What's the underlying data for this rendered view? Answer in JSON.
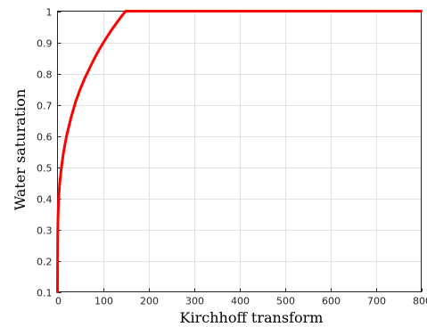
{
  "chart_data": {
    "type": "line",
    "title": "",
    "xlabel": "Kirchhoff transform",
    "ylabel": "Water saturation",
    "xlim": [
      0,
      800
    ],
    "ylim": [
      0.1,
      1
    ],
    "xticks": [
      0,
      100,
      200,
      300,
      400,
      500,
      600,
      700,
      800
    ],
    "yticks": [
      0.1,
      0.2,
      0.3,
      0.4,
      0.5,
      0.6,
      0.7,
      0.8,
      0.9,
      1
    ],
    "xtick_labels": [
      "0",
      "100",
      "200",
      "300",
      "400",
      "500",
      "600",
      "700",
      "800"
    ],
    "ytick_labels": [
      "0.1",
      "0.2",
      "0.3",
      "0.4",
      "0.5",
      "0.6",
      "0.7",
      "0.8",
      "0.9",
      "1"
    ],
    "grid": true,
    "colors": {
      "series": "#ff0000"
    },
    "series": [
      {
        "x": [
          0,
          0.5,
          1,
          2,
          3,
          5,
          8,
          12,
          16,
          20,
          25,
          30,
          40,
          50,
          60,
          70,
          80,
          90,
          100,
          110,
          120,
          130,
          140,
          150,
          200,
          300,
          400,
          500,
          600,
          700,
          800
        ],
        "y": [
          0.1,
          0.28,
          0.33,
          0.38,
          0.41,
          0.45,
          0.49,
          0.535,
          0.57,
          0.6,
          0.63,
          0.66,
          0.71,
          0.75,
          0.785,
          0.815,
          0.845,
          0.872,
          0.897,
          0.92,
          0.942,
          0.962,
          0.982,
          1.0,
          1.0,
          1.0,
          1.0,
          1.0,
          1.0,
          1.0,
          1.0
        ]
      }
    ]
  }
}
